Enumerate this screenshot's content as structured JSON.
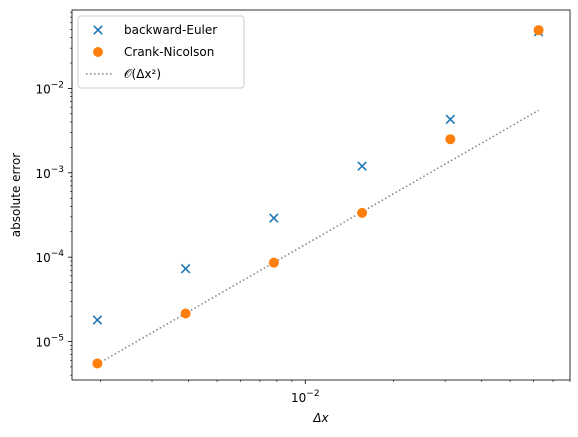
{
  "chart_data": {
    "type": "scatter",
    "xscale": "log",
    "yscale": "log",
    "xlim": [
      0.0016,
      0.08
    ],
    "ylim": [
      3.5e-06,
      0.085
    ],
    "xlabel": "Δx",
    "ylabel": "absolute error",
    "legend_position": "upper-left",
    "x_ticks": [
      {
        "value": 0.01,
        "base": "10",
        "exp": "−2"
      }
    ],
    "y_ticks": [
      {
        "value": 1e-05,
        "base": "10",
        "exp": "−5"
      },
      {
        "value": 0.0001,
        "base": "10",
        "exp": "−4"
      },
      {
        "value": 0.001,
        "base": "10",
        "exp": "−3"
      },
      {
        "value": 0.01,
        "base": "10",
        "exp": "−2"
      }
    ],
    "series": [
      {
        "name": "backward-Euler",
        "marker": "x",
        "color": "#1f77b4",
        "x": [
          0.0019531,
          0.0039063,
          0.0078125,
          0.015625,
          0.03125,
          0.0625
        ],
        "y": [
          1.8e-05,
          7.3e-05,
          0.00029,
          0.0012,
          0.0043,
          0.047
        ]
      },
      {
        "name": "Crank-Nicolson",
        "marker": "o",
        "color": "#ff7f0e",
        "x": [
          0.0019531,
          0.0039063,
          0.0078125,
          0.015625,
          0.03125,
          0.0625
        ],
        "y": [
          5.5e-06,
          2.15e-05,
          8.6e-05,
          0.000335,
          0.0025,
          0.049
        ]
      }
    ],
    "reference_line": {
      "name": "𝒪(Δx²)",
      "style": "dotted",
      "color": "#808080",
      "x": [
        0.0019531,
        0.0625
      ],
      "y": [
        5.4e-06,
        0.0055
      ]
    }
  }
}
